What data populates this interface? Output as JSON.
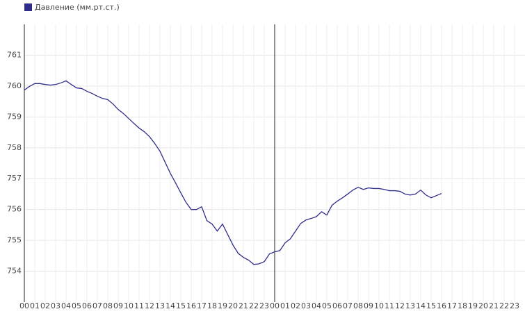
{
  "chart_data": {
    "type": "line",
    "series": [
      {
        "name": "Давление (мм.рт.ст.)",
        "color": "#2e2e8a",
        "values": [
          759.87,
          759.99,
          760.08,
          760.08,
          760.05,
          760.03,
          760.05,
          760.1,
          760.17,
          760.05,
          759.94,
          759.92,
          759.83,
          759.76,
          759.67,
          759.6,
          759.56,
          759.42,
          759.24,
          759.11,
          758.95,
          758.79,
          758.64,
          758.52,
          758.36,
          758.14,
          757.89,
          757.53,
          757.17,
          756.86,
          756.54,
          756.23,
          756.0,
          756.0,
          756.09,
          755.64,
          755.53,
          755.3,
          755.53,
          755.19,
          754.85,
          754.58,
          754.45,
          754.36,
          754.22,
          754.24,
          754.31,
          754.56,
          754.63,
          754.67,
          754.92,
          755.05,
          755.3,
          755.55,
          755.66,
          755.71,
          755.77,
          755.93,
          755.82,
          756.14,
          756.27,
          756.38,
          756.5,
          756.63,
          756.72,
          756.65,
          756.7,
          756.68,
          756.68,
          756.65,
          756.61,
          756.61,
          756.59,
          756.5,
          756.47,
          756.5,
          756.63,
          756.47,
          756.38,
          756.45,
          756.52
        ]
      }
    ],
    "x": [
      0,
      0.5,
      1,
      1.5,
      2,
      2.5,
      3,
      3.5,
      4,
      4.5,
      5,
      5.5,
      6,
      6.5,
      7,
      7.5,
      8,
      8.5,
      9,
      9.5,
      10,
      10.5,
      11,
      11.5,
      12,
      12.5,
      13,
      13.5,
      14,
      14.5,
      15,
      15.5,
      16,
      16.5,
      17,
      17.5,
      18,
      18.5,
      19,
      19.5,
      20,
      20.5,
      21,
      21.5,
      22,
      22.5,
      23,
      23.5,
      24,
      24.5,
      25,
      25.5,
      26,
      26.5,
      27,
      27.5,
      28,
      28.5,
      29,
      29.5,
      30,
      30.5,
      31,
      31.5,
      32,
      32.5,
      33,
      33.5,
      34,
      34.5,
      35,
      35.5,
      36,
      36.5,
      37,
      37.5,
      38,
      38.5,
      39,
      39.5,
      40
    ],
    "xlim": [
      0,
      48
    ],
    "xticks": [
      {
        "value": 0,
        "label": "00"
      },
      {
        "value": 1,
        "label": "01"
      },
      {
        "value": 2,
        "label": "02"
      },
      {
        "value": 3,
        "label": "03"
      },
      {
        "value": 4,
        "label": "04"
      },
      {
        "value": 5,
        "label": "05"
      },
      {
        "value": 6,
        "label": "06"
      },
      {
        "value": 7,
        "label": "07"
      },
      {
        "value": 8,
        "label": "08"
      },
      {
        "value": 9,
        "label": "09"
      },
      {
        "value": 10,
        "label": "10"
      },
      {
        "value": 11,
        "label": "11"
      },
      {
        "value": 12,
        "label": "12"
      },
      {
        "value": 13,
        "label": "13"
      },
      {
        "value": 14,
        "label": "14"
      },
      {
        "value": 15,
        "label": "15"
      },
      {
        "value": 16,
        "label": "16"
      },
      {
        "value": 17,
        "label": "17"
      },
      {
        "value": 18,
        "label": "18"
      },
      {
        "value": 19,
        "label": "19"
      },
      {
        "value": 20,
        "label": "20"
      },
      {
        "value": 21,
        "label": "21"
      },
      {
        "value": 22,
        "label": "22"
      },
      {
        "value": 23,
        "label": "23"
      },
      {
        "value": 24,
        "label": "00"
      },
      {
        "value": 25,
        "label": "01"
      },
      {
        "value": 26,
        "label": "02"
      },
      {
        "value": 27,
        "label": "03"
      },
      {
        "value": 28,
        "label": "04"
      },
      {
        "value": 29,
        "label": "05"
      },
      {
        "value": 30,
        "label": "06"
      },
      {
        "value": 31,
        "label": "07"
      },
      {
        "value": 32,
        "label": "08"
      },
      {
        "value": 33,
        "label": "09"
      },
      {
        "value": 34,
        "label": "10"
      },
      {
        "value": 35,
        "label": "11"
      },
      {
        "value": 36,
        "label": "12"
      },
      {
        "value": 37,
        "label": "13"
      },
      {
        "value": 38,
        "label": "14"
      },
      {
        "value": 39,
        "label": "15"
      },
      {
        "value": 40,
        "label": "16"
      },
      {
        "value": 41,
        "label": "17"
      },
      {
        "value": 42,
        "label": "18"
      },
      {
        "value": 43,
        "label": "19"
      },
      {
        "value": 44,
        "label": "20"
      },
      {
        "value": 45,
        "label": "21"
      },
      {
        "value": 46,
        "label": "22"
      },
      {
        "value": 47,
        "label": "23"
      }
    ],
    "ylim": [
      753,
      762
    ],
    "yticks": [
      754,
      755,
      756,
      757,
      758,
      759,
      760,
      761
    ],
    "grid": true
  }
}
